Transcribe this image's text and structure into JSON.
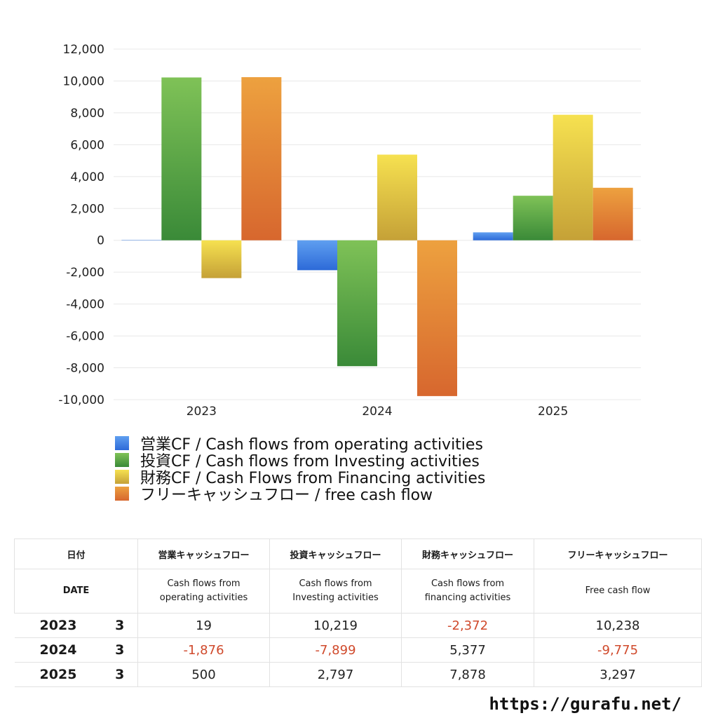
{
  "chart_data": {
    "type": "bar",
    "categories": [
      "2023",
      "2024",
      "2025"
    ],
    "ylim": [
      -10000,
      12000
    ],
    "yticks": [
      12000,
      10000,
      8000,
      6000,
      4000,
      2000,
      0,
      -2000,
      -4000,
      -6000,
      -8000,
      -10000
    ],
    "ytick_labels": [
      "12,000",
      "10,000",
      "8,000",
      "6,000",
      "4,000",
      "2,000",
      "0",
      "-2,000",
      "-4,000",
      "-6,000",
      "-8,000",
      "-10,000"
    ],
    "grid": true,
    "legend_position": "bottom",
    "series": [
      {
        "name": "営業CF / Cash flows from operating activities",
        "values": [
          19,
          -1876,
          500
        ],
        "color_top": "#5f9ff0",
        "color_bottom": "#2d6ad8"
      },
      {
        "name": "投資CF / Cash flows from Investing activities",
        "values": [
          10219,
          -7899,
          2797
        ],
        "color_top": "#7fc257",
        "color_bottom": "#3a8a38"
      },
      {
        "name": "財務CF / Cash Flows from Financing activities",
        "values": [
          -2372,
          5377,
          7878
        ],
        "color_top": "#f6e150",
        "color_bottom": "#c5a137"
      },
      {
        "name": "フリーキャッシュフロー / free cash flow",
        "values": [
          10238,
          -9775,
          3297
        ],
        "color_top": "#eda13f",
        "color_bottom": "#d7672e"
      }
    ]
  },
  "table": {
    "header_jp": [
      "日付",
      "営業キャッシュフロー",
      "投資キャッシュフロー",
      "財務キャッシュフロー",
      "フリーキャッシュフロー"
    ],
    "header_en": {
      "date": "DATE",
      "operating": [
        "Cash flows from",
        "operating activities"
      ],
      "investing": [
        "Cash flows from",
        "Investing activities"
      ],
      "financing": [
        "Cash flows from",
        "financing activities"
      ],
      "free": "Free cash flow"
    },
    "rows": [
      {
        "year": "2023",
        "month": "3",
        "operating": "19",
        "investing": "10,219",
        "financing": "-2,372",
        "free": "10,238"
      },
      {
        "year": "2024",
        "month": "3",
        "operating": "-1,876",
        "investing": "-7,899",
        "financing": "5,377",
        "free": "-9,775"
      },
      {
        "year": "2025",
        "month": "3",
        "operating": "500",
        "investing": "2,797",
        "financing": "7,878",
        "free": "3,297"
      }
    ]
  },
  "footer": {
    "url": "https://gurafu.net/"
  }
}
